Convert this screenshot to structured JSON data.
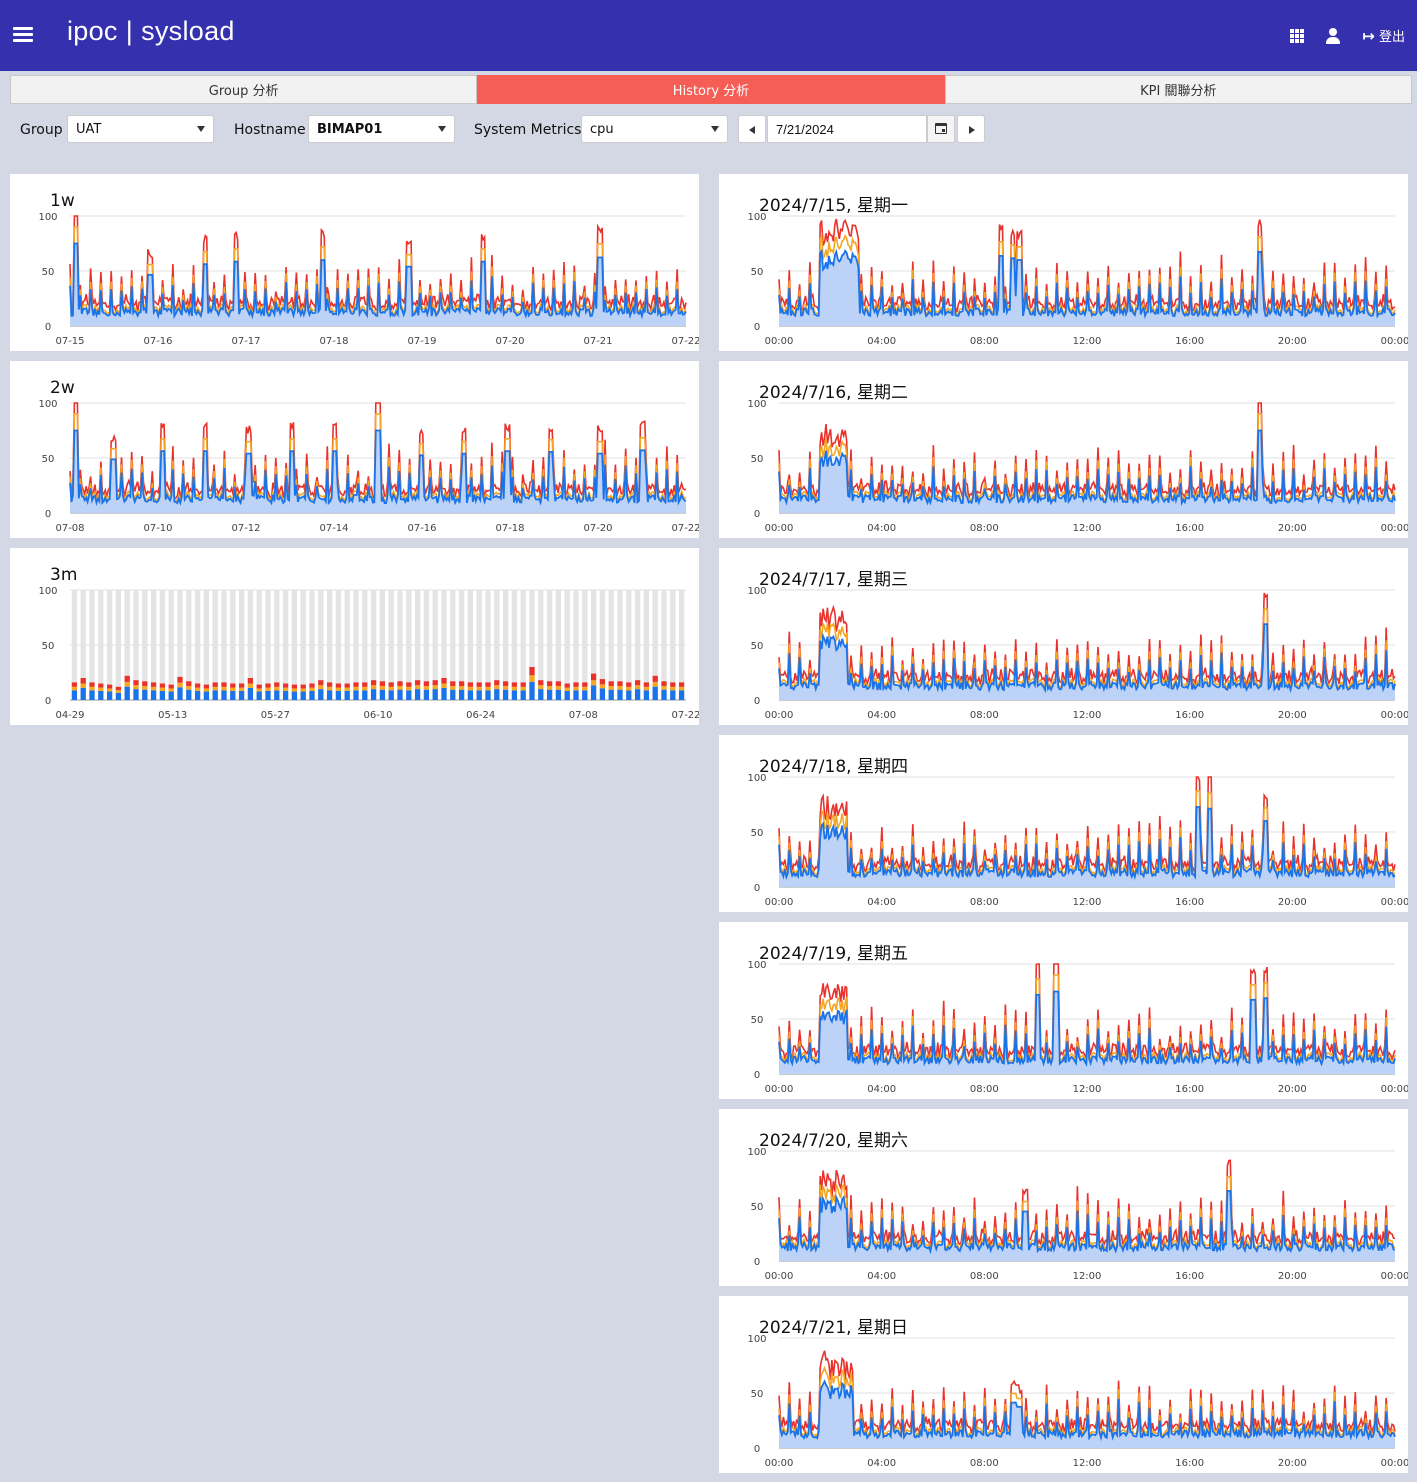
{
  "header": {
    "app_name": "ipoc",
    "separator": "|",
    "module": "sysload",
    "logout_label": "登出"
  },
  "tabs": [
    {
      "label": "Group 分析",
      "active": false
    },
    {
      "label": "History 分析",
      "active": true
    },
    {
      "label": "KPI 關聯分析",
      "active": false
    }
  ],
  "filters": {
    "group_label": "Group",
    "group_value": "UAT",
    "hostname_label": "Hostname",
    "hostname_value": "BIMAP01",
    "metrics_label": "System Metrics",
    "metrics_value": "cpu",
    "date_value": "7/21/2024"
  },
  "colors": {
    "header": "#3530ae",
    "active_tab": "#f45e55",
    "series_red": "#e8322c",
    "series_orange": "#f5a623",
    "series_blue": "#1a73e8",
    "area_fill": "#bcd3f7"
  },
  "chart_data": [
    {
      "id": "1w",
      "type": "line",
      "title": "1w",
      "ylim": [
        0,
        100
      ],
      "yticks": [
        0,
        50,
        100
      ],
      "xticks": [
        "07-15",
        "07-16",
        "07-17",
        "07-18",
        "07-19",
        "07-20",
        "07-21",
        "07-22"
      ],
      "peaks": [
        [
          0.01,
          100
        ],
        [
          0.13,
          62
        ],
        [
          0.22,
          75
        ],
        [
          0.27,
          78
        ],
        [
          0.41,
          80
        ],
        [
          0.55,
          72
        ],
        [
          0.67,
          78
        ],
        [
          0.86,
          83
        ]
      ]
    },
    {
      "id": "2w",
      "type": "line",
      "title": "2w",
      "ylim": [
        0,
        100
      ],
      "yticks": [
        0,
        50,
        100
      ],
      "xticks": [
        "07-08",
        "07-10",
        "07-12",
        "07-14",
        "07-16",
        "07-18",
        "07-20",
        "07-22"
      ],
      "peaks": [
        [
          0.01,
          100
        ],
        [
          0.07,
          65
        ],
        [
          0.15,
          75
        ],
        [
          0.22,
          75
        ],
        [
          0.29,
          72
        ],
        [
          0.36,
          75
        ],
        [
          0.43,
          75
        ],
        [
          0.5,
          100
        ],
        [
          0.57,
          70
        ],
        [
          0.64,
          72
        ],
        [
          0.71,
          75
        ],
        [
          0.78,
          74
        ],
        [
          0.86,
          72
        ],
        [
          0.93,
          76
        ]
      ]
    },
    {
      "id": "3m",
      "type": "bar",
      "title": "3m",
      "ylim": [
        0,
        100
      ],
      "yticks": [
        0,
        50,
        100
      ],
      "xticks": [
        "04-29",
        "05-13",
        "05-27",
        "06-10",
        "06-24",
        "07-08",
        "07-22"
      ],
      "values": [
        16,
        20,
        16,
        15,
        14,
        12,
        22,
        18,
        17,
        16,
        15,
        14,
        21,
        17,
        15,
        14,
        16,
        16,
        15,
        15,
        20,
        14,
        15,
        16,
        15,
        14,
        14,
        15,
        18,
        16,
        15,
        15,
        16,
        16,
        18,
        17,
        16,
        17,
        16,
        18,
        17,
        18,
        20,
        17,
        17,
        16,
        16,
        16,
        18,
        17,
        16,
        16,
        30,
        18,
        17,
        17,
        15,
        16,
        16,
        24,
        19,
        17,
        17,
        16,
        18,
        16,
        22,
        17,
        16,
        16
      ]
    },
    {
      "id": "d0715",
      "type": "line",
      "title": "2024/7/15, 星期一",
      "ylim": [
        0,
        100
      ],
      "yticks": [
        0,
        50,
        100
      ],
      "xticks": [
        "00:00",
        "04:00",
        "08:00",
        "12:00",
        "16:00",
        "20:00",
        "00:00"
      ],
      "plateau": [
        0.065,
        0.13,
        96
      ],
      "peaks": [
        [
          0.36,
          85
        ],
        [
          0.38,
          82
        ],
        [
          0.39,
          80
        ],
        [
          0.78,
          90
        ]
      ]
    },
    {
      "id": "d0716",
      "type": "line",
      "title": "2024/7/16, 星期二",
      "ylim": [
        0,
        100
      ],
      "yticks": [
        0,
        50,
        100
      ],
      "xticks": [
        "00:00",
        "04:00",
        "08:00",
        "12:00",
        "16:00",
        "20:00",
        "00:00"
      ],
      "plateau": [
        0.065,
        0.11,
        80
      ],
      "peaks": [
        [
          0.78,
          100
        ]
      ]
    },
    {
      "id": "d0717",
      "type": "line",
      "title": "2024/7/17, 星期三",
      "ylim": [
        0,
        100
      ],
      "yticks": [
        0,
        50,
        100
      ],
      "xticks": [
        "00:00",
        "04:00",
        "08:00",
        "12:00",
        "16:00",
        "20:00",
        "00:00"
      ],
      "plateau": [
        0.065,
        0.11,
        82
      ],
      "peaks": [
        [
          0.79,
          92
        ]
      ]
    },
    {
      "id": "d0718",
      "type": "line",
      "title": "2024/7/18, 星期四",
      "ylim": [
        0,
        100
      ],
      "yticks": [
        0,
        50,
        100
      ],
      "xticks": [
        "00:00",
        "04:00",
        "08:00",
        "12:00",
        "16:00",
        "20:00",
        "00:00"
      ],
      "plateau": [
        0.065,
        0.11,
        82
      ],
      "peaks": [
        [
          0.68,
          97
        ],
        [
          0.7,
          95
        ],
        [
          0.79,
          80
        ]
      ]
    },
    {
      "id": "d0719",
      "type": "line",
      "title": "2024/7/19, 星期五",
      "ylim": [
        0,
        100
      ],
      "yticks": [
        0,
        50,
        100
      ],
      "xticks": [
        "00:00",
        "04:00",
        "08:00",
        "12:00",
        "16:00",
        "20:00",
        "00:00"
      ],
      "plateau": [
        0.065,
        0.11,
        82
      ],
      "peaks": [
        [
          0.42,
          96
        ],
        [
          0.45,
          100
        ],
        [
          0.77,
          90
        ],
        [
          0.79,
          92
        ]
      ]
    },
    {
      "id": "d0720",
      "type": "line",
      "title": "2024/7/20, 星期六",
      "ylim": [
        0,
        100
      ],
      "yticks": [
        0,
        50,
        100
      ],
      "xticks": [
        "00:00",
        "04:00",
        "08:00",
        "12:00",
        "16:00",
        "20:00",
        "00:00"
      ],
      "plateau": [
        0.065,
        0.11,
        82
      ],
      "peaks": [
        [
          0.4,
          60
        ],
        [
          0.73,
          85
        ]
      ]
    },
    {
      "id": "d0721",
      "type": "line",
      "title": "2024/7/21, 星期日",
      "ylim": [
        0,
        100
      ],
      "yticks": [
        0,
        50,
        100
      ],
      "xticks": [
        "00:00",
        "04:00",
        "08:00",
        "12:00",
        "16:00",
        "20:00",
        "00:00"
      ],
      "plateau": [
        0.065,
        0.12,
        85
      ],
      "peaks": [
        [
          0.38,
          55
        ],
        [
          0.39,
          50
        ]
      ]
    }
  ]
}
